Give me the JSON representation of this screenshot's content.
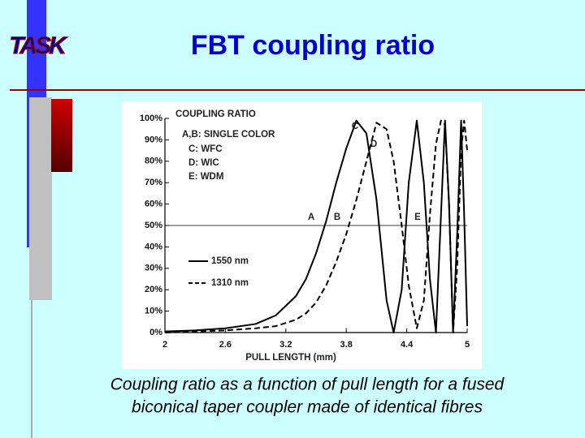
{
  "logo": "TASK",
  "title": "FBT coupling ratio",
  "caption": [
    "Coupling ratio as a function of pull length for a fused",
    "biconical taper coupler made of identical fibres"
  ],
  "chart_data": {
    "type": "line",
    "ylabel": "COUPLING RATIO",
    "xlabel": "PULL LENGTH (mm)",
    "annotations": [
      "A,B: SINGLE COLOR",
      "C: WFC",
      "D: WIC",
      "E: WDM"
    ],
    "point_labels": [
      "A",
      "B",
      "C",
      "D",
      "E"
    ],
    "x": [
      2.0,
      2.3,
      2.6,
      2.9,
      3.1,
      3.3,
      3.4,
      3.5,
      3.6,
      3.7,
      3.8,
      3.9,
      4.0,
      4.1,
      4.2,
      4.27,
      4.35,
      4.42,
      4.5,
      4.57,
      4.63,
      4.69,
      4.74,
      4.78,
      4.82,
      4.86,
      4.9,
      4.94,
      4.97,
      5.0
    ],
    "series": [
      {
        "name": "1550 nm",
        "color": "#000000",
        "style": "solid",
        "values": [
          0.5,
          1,
          2,
          4,
          8,
          17,
          25,
          37,
          52,
          70,
          86,
          99,
          93,
          62,
          15,
          0,
          20,
          70,
          99,
          70,
          25,
          0,
          55,
          99,
          60,
          0,
          45,
          99,
          55,
          3
        ]
      },
      {
        "name": "1310 nm",
        "color": "#000000",
        "style": "dashed",
        "values": [
          0,
          0.5,
          1,
          2,
          3,
          6,
          9,
          14,
          22,
          33,
          46,
          62,
          80,
          98,
          95,
          80,
          50,
          22,
          2,
          15,
          55,
          88,
          99,
          97,
          60,
          0,
          30,
          85,
          99,
          85
        ]
      }
    ],
    "xlim": [
      2,
      5
    ],
    "xticks": [
      2,
      2.6,
      3.2,
      3.8,
      4.4,
      5
    ],
    "ylim": [
      0,
      100
    ],
    "yticks": [
      {
        "value": 0,
        "label": "0%"
      },
      {
        "value": 10,
        "label": "10%"
      },
      {
        "value": 20,
        "label": "20%"
      },
      {
        "value": 30,
        "label": "30%"
      },
      {
        "value": 40,
        "label": "40%"
      },
      {
        "value": 50,
        "label": "50%"
      },
      {
        "value": 60,
        "label": "60%"
      },
      {
        "value": 70,
        "label": "70%"
      },
      {
        "value": 80,
        "label": "80%"
      },
      {
        "value": 90,
        "label": "90%"
      },
      {
        "value": 100,
        "label": "100%"
      }
    ],
    "reference_line": 50
  }
}
